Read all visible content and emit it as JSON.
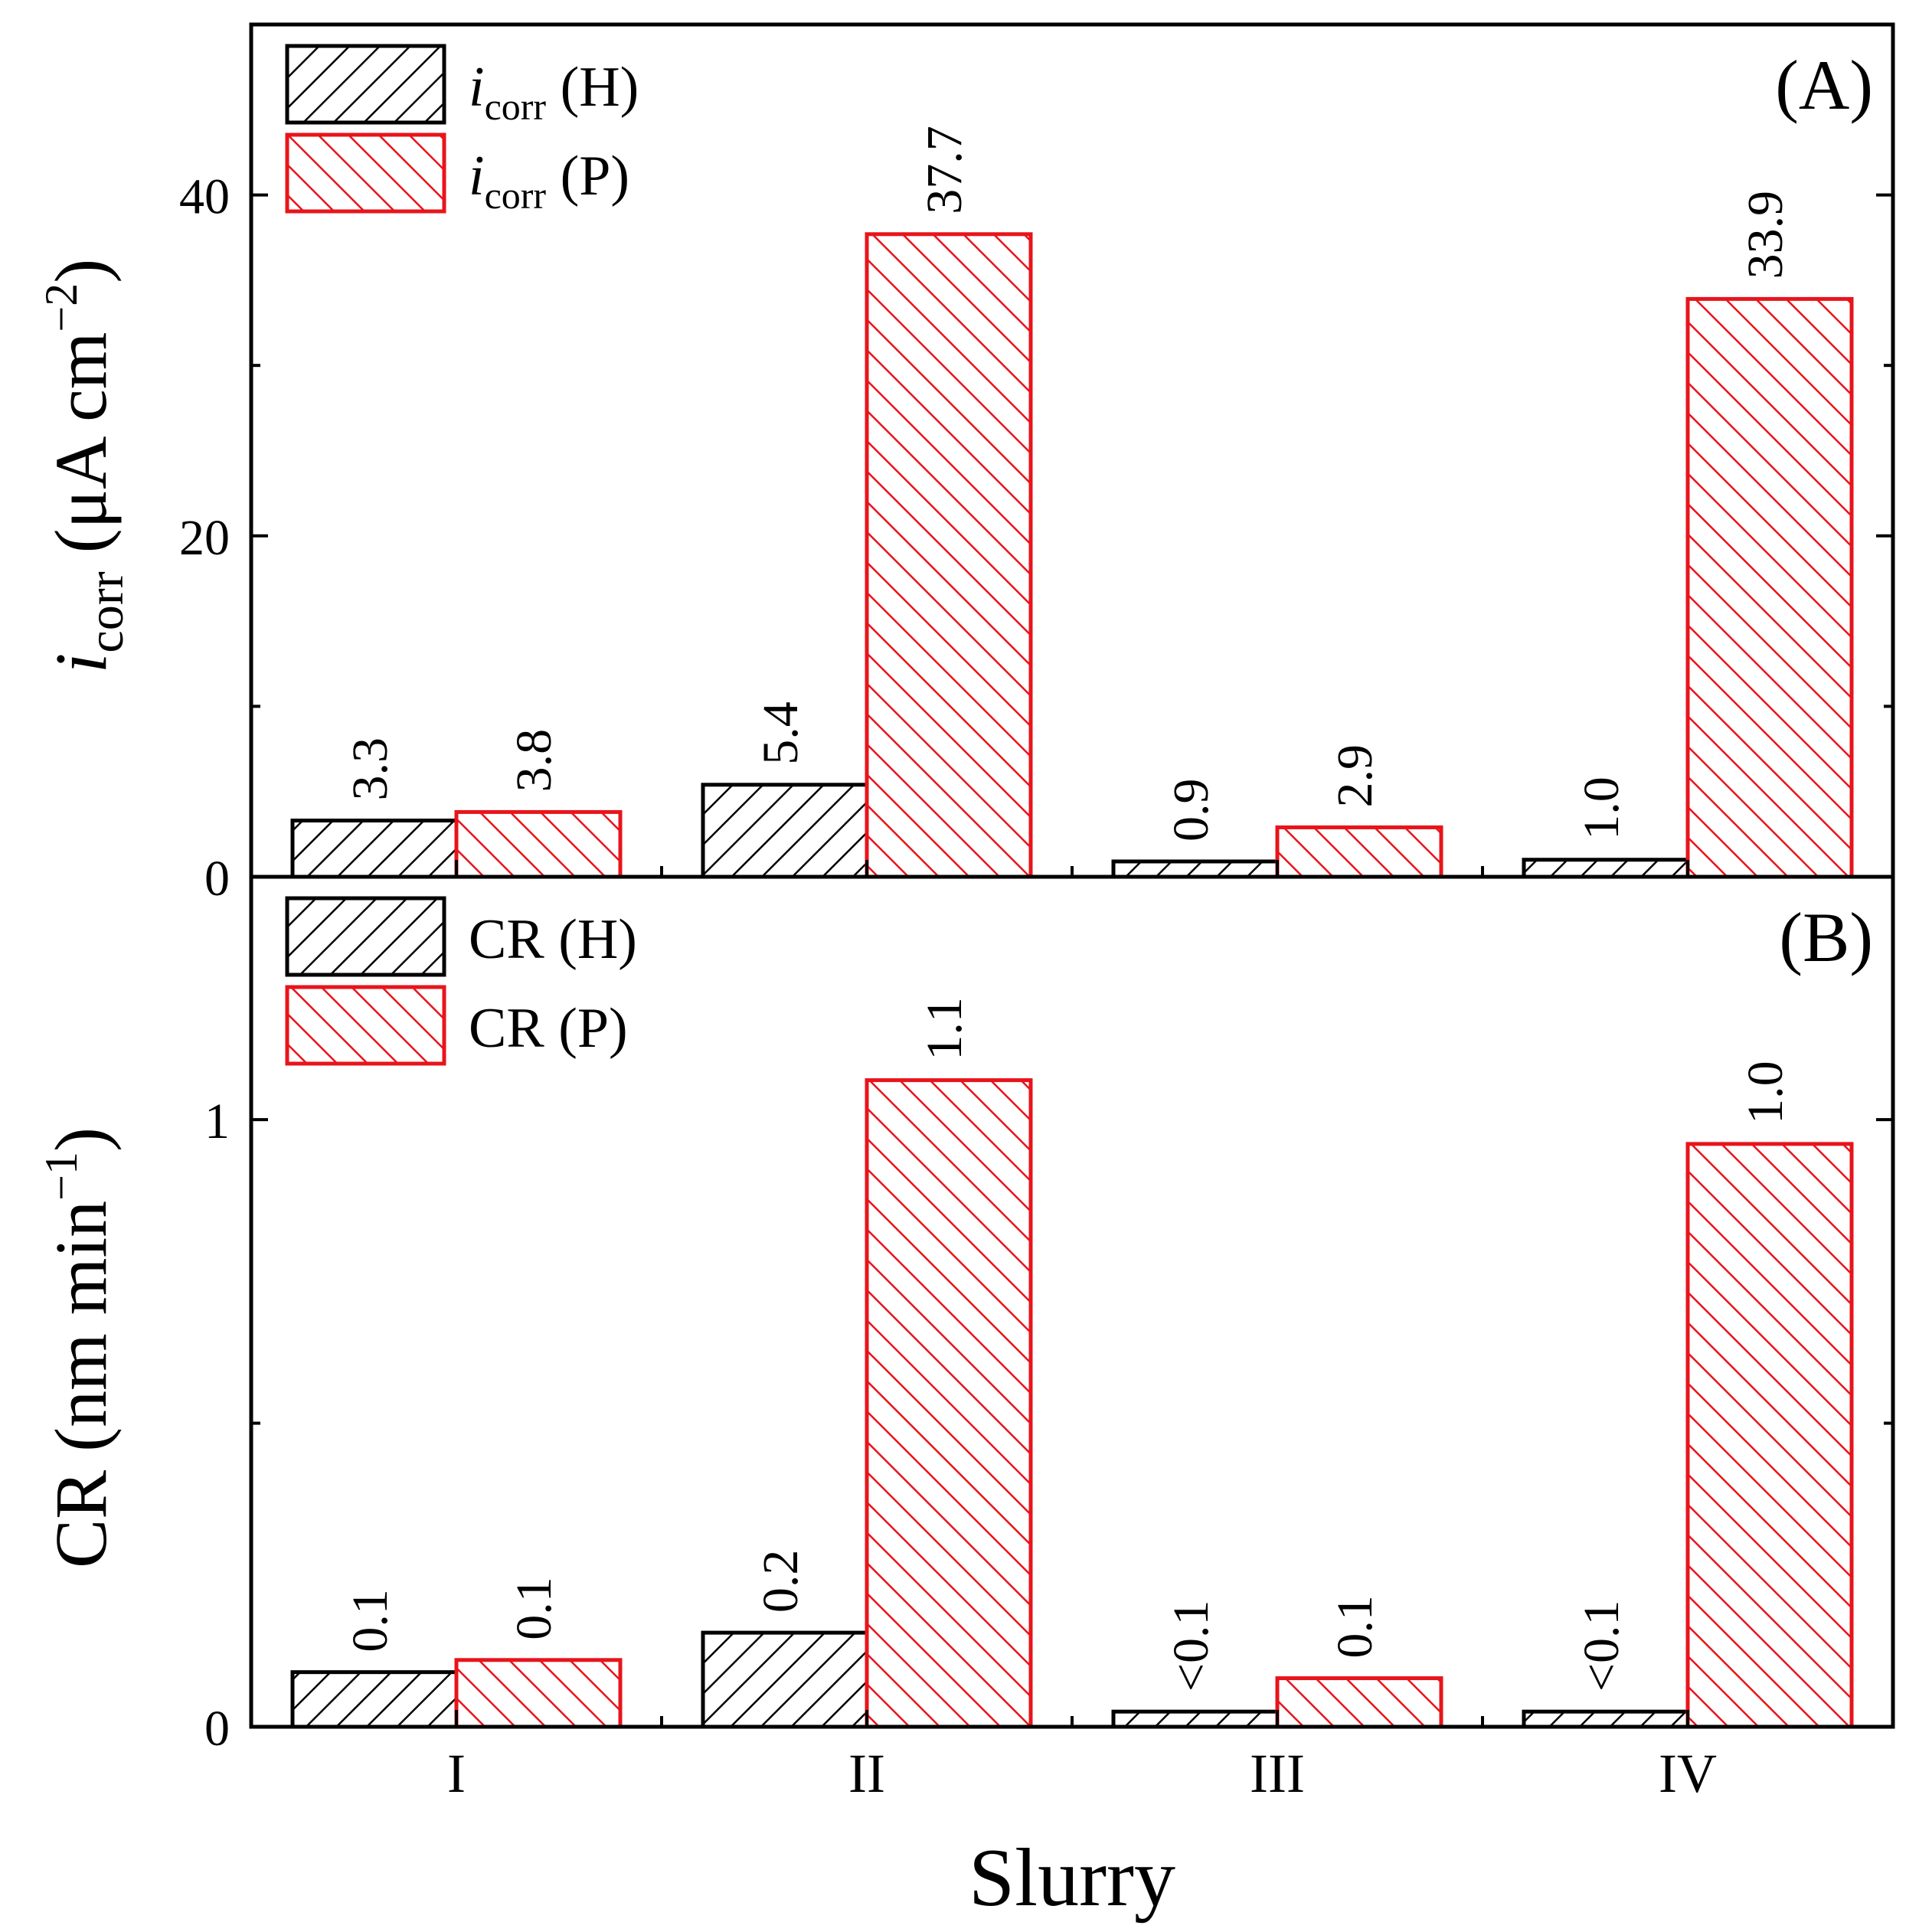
{
  "chart_data": {
    "type": "bar",
    "categories": [
      "I",
      "II",
      "III",
      "IV"
    ],
    "xlabel": "Slurry",
    "colors": {
      "H": "#000000",
      "P": "#e8141b"
    },
    "panels": [
      {
        "panel_label": "(A)",
        "ylabel_main": "i",
        "ylabel_sub": "corr",
        "ylabel_unit": " (μA cm",
        "ylabel_exp": "−2",
        "ylabel_close": ")",
        "ylim": [
          0,
          50
        ],
        "yticks": [
          0,
          20,
          40
        ],
        "ytick_labels": [
          "0",
          "20",
          "40"
        ],
        "legend_position": "top-left",
        "series": [
          {
            "key": "H",
            "legend_main": "i",
            "legend_sub": "corr",
            "legend_suffix": " (H)",
            "values": [
              3.3,
              5.4,
              0.9,
              1.0
            ],
            "labels": [
              "3.3",
              "5.4",
              "0.9",
              "1.0"
            ]
          },
          {
            "key": "P",
            "legend_main": "i",
            "legend_sub": "corr",
            "legend_suffix": " (P)",
            "values": [
              3.8,
              37.7,
              2.9,
              33.9
            ],
            "labels": [
              "3.8",
              "37.7",
              "2.9",
              "33.9"
            ]
          }
        ]
      },
      {
        "panel_label": "(B)",
        "ylabel_main": "CR",
        "ylabel_sub": "",
        "ylabel_unit": " (nm min",
        "ylabel_exp": "−1",
        "ylabel_close": ")",
        "ylim": [
          0,
          1.4
        ],
        "yticks": [
          0,
          1
        ],
        "ytick_labels": [
          "0",
          "1"
        ],
        "legend_position": "top-left",
        "series": [
          {
            "key": "H",
            "legend_main": "CR",
            "legend_sub": "",
            "legend_suffix": " (H)",
            "values": [
              0.09,
              0.155,
              0.025,
              0.025
            ],
            "labels": [
              "0.1",
              "0.2",
              "<0.1",
              "<0.1"
            ]
          },
          {
            "key": "P",
            "legend_main": "CR",
            "legend_sub": "",
            "legend_suffix": " (P)",
            "values": [
              0.11,
              1.065,
              0.08,
              0.96
            ],
            "labels": [
              "0.1",
              "1.1",
              "0.1",
              "1.0"
            ]
          }
        ]
      }
    ]
  }
}
